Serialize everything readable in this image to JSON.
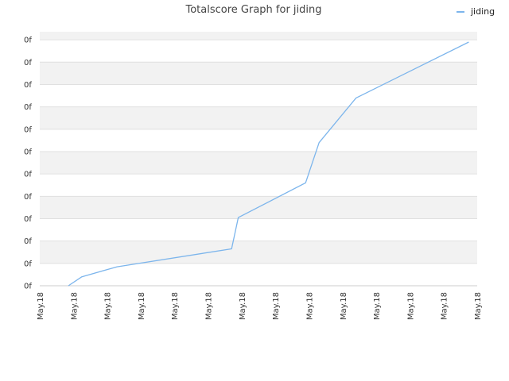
{
  "chart_data": {
    "type": "line",
    "title": "Totalscore Graph for jiding",
    "xlabel": "",
    "ylabel": "",
    "y_tick_labels": [
      "0f",
      "0f",
      "0f",
      "0f",
      "0f",
      "0f",
      "0f",
      "0f",
      "0f",
      "0f",
      "0f",
      "0f"
    ],
    "x_tick_labels": [
      "May.18",
      "May.18",
      "May.18",
      "May.18",
      "May.18",
      "May.18",
      "May.18",
      "May.18",
      "May.18",
      "May.18",
      "May.18",
      "May.18",
      "May.18",
      "May.18"
    ],
    "legend_position": "top-right",
    "grid": true,
    "xlim": [
      0,
      13
    ],
    "ylim": [
      0,
      11
    ],
    "series": [
      {
        "name": "jiding",
        "color": "#7cb5ec",
        "x": [
          0.85,
          1.25,
          2.3,
          5.7,
          5.9,
          7.9,
          8.3,
          9.4,
          12.75
        ],
        "y": [
          0.0,
          0.4,
          0.85,
          1.65,
          3.05,
          4.6,
          6.4,
          8.4,
          10.9
        ]
      }
    ]
  }
}
